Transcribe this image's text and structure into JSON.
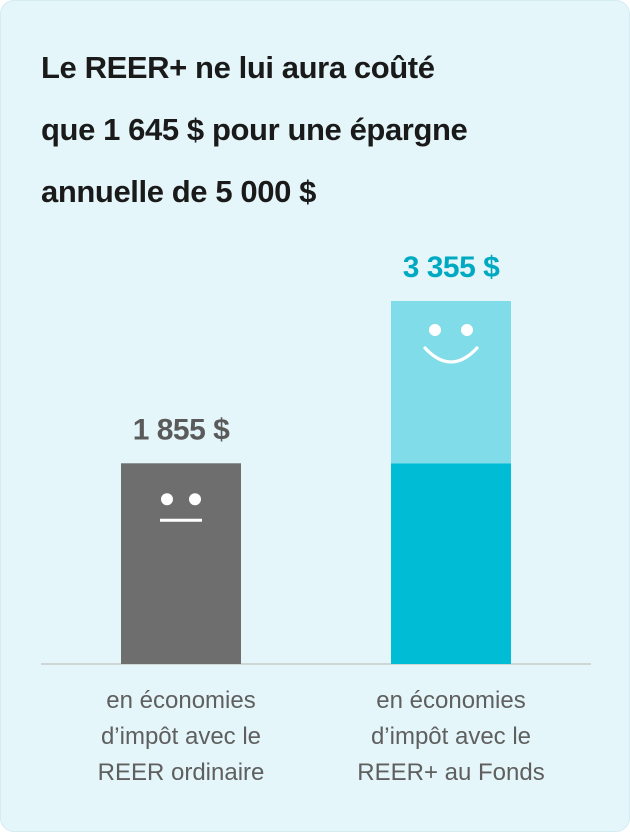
{
  "title_lines": [
    "Le REER+ ne lui aura coûté",
    "que 1 645 $ pour une épargne",
    "annuelle de 5 000 $"
  ],
  "chart_data": {
    "type": "bar",
    "categories": [
      "REER ordinaire",
      "REER+ au Fonds"
    ],
    "values": [
      1855,
      3355
    ],
    "value_labels": [
      "1 855 $",
      "3 355 $"
    ],
    "stacked_segments": [
      {
        "category": "REER+ au Fonds",
        "base": 1855,
        "extra": 1500
      }
    ],
    "captions": [
      [
        "en économies",
        "d’impôt avec le",
        "REER ordinaire"
      ],
      [
        "en économies",
        "d’impôt avec le",
        "REER+ au Fonds"
      ]
    ],
    "faces": [
      "neutral-face-icon",
      "smiley-face-icon"
    ],
    "colors": {
      "regular_bar": "#6e6e6e",
      "plus_bar": "#00bcd4",
      "plus_bar_top": "#7fdce8",
      "regular_label": "#5a5a5a",
      "plus_label": "#00a9c2",
      "baseline": "#c8c8c8",
      "face_on_dark": "#ffffff"
    },
    "ylim": [
      0,
      3355
    ]
  }
}
